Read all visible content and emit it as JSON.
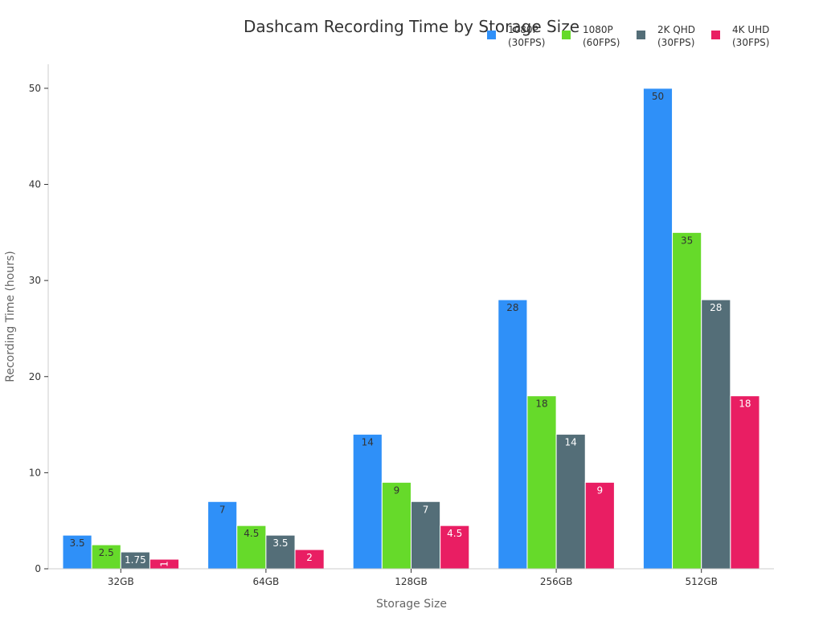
{
  "chart_data": {
    "type": "bar",
    "title": "Dashcam Recording Time by Storage Size",
    "xlabel": "Storage Size",
    "ylabel": "Recording Time (hours)",
    "categories": [
      "32GB",
      "64GB",
      "128GB",
      "256GB",
      "512GB"
    ],
    "ylim": [
      0,
      52.5
    ],
    "yticks": [
      0,
      10,
      20,
      30,
      40,
      50
    ],
    "grid": false,
    "legend_position": "top-right",
    "series": [
      {
        "name": [
          "1080P",
          "(30FPS)"
        ],
        "color": "#2f90f8",
        "label_color": "#333333",
        "values": [
          3.5,
          7,
          14,
          28,
          50
        ],
        "labels": [
          "3.5",
          "7",
          "14",
          "28",
          "50"
        ]
      },
      {
        "name": [
          "1080P",
          "(60FPS)"
        ],
        "color": "#66da2a",
        "label_color": "#333333",
        "values": [
          2.5,
          4.5,
          9,
          18,
          35
        ],
        "labels": [
          "2.5",
          "4.5",
          "9",
          "18",
          "35"
        ]
      },
      {
        "name": [
          "2K QHD",
          "(30FPS)"
        ],
        "color": "#546e78",
        "label_color": "#ffffff",
        "values": [
          1.75,
          3.5,
          7,
          14,
          28
        ],
        "labels": [
          "1.75",
          "3.5",
          "7",
          "14",
          "28"
        ]
      },
      {
        "name": [
          "4K UHD",
          "(30FPS)"
        ],
        "color": "#e91e63",
        "label_color": "#ffffff",
        "values": [
          1,
          2,
          4.5,
          9,
          18
        ],
        "labels": [
          "1",
          "2",
          "4.5",
          "9",
          "18"
        ]
      }
    ]
  }
}
